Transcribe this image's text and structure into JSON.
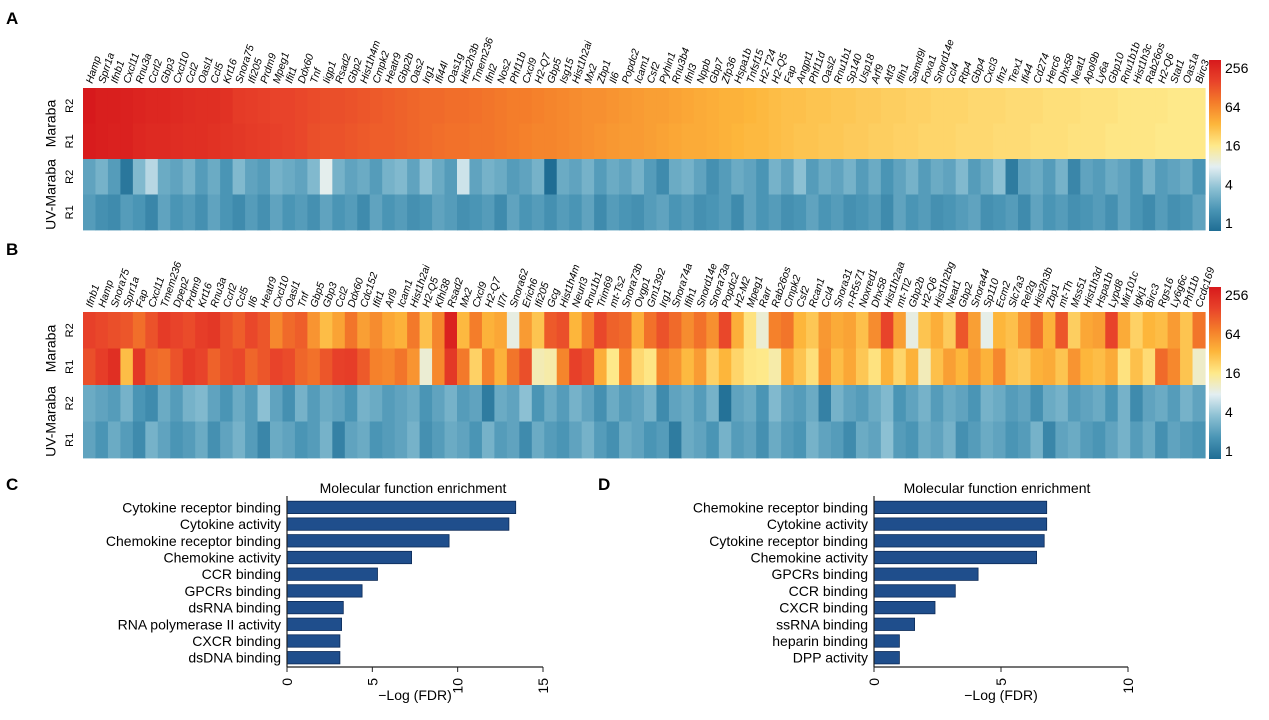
{
  "panels": {
    "A": {
      "label": "A"
    },
    "B": {
      "label": "B"
    },
    "C": {
      "label": "C"
    },
    "D": {
      "label": "D"
    }
  },
  "colorbar": {
    "ticks": [
      "256",
      "64",
      "16",
      "4",
      "1"
    ],
    "colors": [
      "#d7191c",
      "#e8432a",
      "#f47d2a",
      "#fdb63b",
      "#fee98a",
      "#e3eef2",
      "#8cc0d3",
      "#4a95b5",
      "#1f6d94"
    ]
  },
  "chart_data": [
    {
      "type": "heatmap",
      "panel": "A",
      "row_group_labels": [
        "Maraba",
        "UV-Maraba"
      ],
      "row_labels": [
        "R2",
        "R1",
        "R2",
        "R1"
      ],
      "scale": "log2 fold change, 1 to 256",
      "genes": [
        "Hamp",
        "Sprr1a",
        "Ifnb1",
        "Cxcl11",
        "Rnu3a",
        "Ccrl2",
        "Gbp3",
        "Cxcl10",
        "Ccl2",
        "Oasl1",
        "Ccl5",
        "Krt16",
        "Snora75",
        "Ifi205",
        "Prdm9",
        "Mpeg1",
        "Ifit1",
        "Ddx60",
        "Tnf",
        "Iigp1",
        "Rsad2",
        "Gbp2",
        "Hist1h4m",
        "Cmpk2",
        "Heatr9",
        "Gbp2b",
        "Oas2",
        "Irg1",
        "Ifi44l",
        "Oas1g",
        "Hist2h3b",
        "Tmem236",
        "Ifnl2",
        "Nos2",
        "Phf11b",
        "Cxcl9",
        "H2-Q7",
        "Gbp5",
        "Isg15",
        "Hist1h2ai",
        "Mx2",
        "Zbp1",
        "Il6",
        "Popdc2",
        "Icam1",
        "Csf2",
        "Pyhin1",
        "Rnu3b4",
        "Ifnl3",
        "Nppb",
        "Gbp7",
        "Zfp36",
        "Hspa1b",
        "Tnfsf15",
        "H2-T24",
        "H2-Q5",
        "Fap",
        "Angpt1",
        "Phf11d",
        "Oasl2",
        "Rnu1b1",
        "Sp140",
        "Usp18",
        "Arf9",
        "Atf3",
        "Ifih1",
        "Samd9l",
        "Foxa1",
        "Snord14e",
        "Ccl4",
        "Rtp4",
        "Gbp4",
        "Cxcl3",
        "Ifnz",
        "Trex1",
        "Ifi44",
        "Cd274",
        "Herc6",
        "Dhx58",
        "Neat1",
        "Apol9b",
        "Ly6a",
        "Gbp10",
        "Rnu1b1b",
        "Hist1h3c",
        "Rab26os",
        "H2-Q6",
        "Stat1",
        "Oas1a",
        "Birc3"
      ],
      "maraba_r2": [
        8,
        7.8,
        7.8,
        7.7,
        7.6,
        7.5,
        7.5,
        7.4,
        7.3,
        7.2,
        7.2,
        7.1,
        6.8,
        6.7,
        6.6,
        6.5,
        6.5,
        6.4,
        6.3,
        6.2,
        6.2,
        6.1,
        6,
        5.9,
        5.8,
        5.7,
        5.6,
        5.5,
        5.5,
        5.4,
        5.4,
        5.3,
        5.2,
        5.1,
        5,
        5,
        4.9,
        4.8,
        4.7,
        4.6,
        4.5,
        4.5,
        4.4,
        4.3,
        4.2,
        4.1,
        4.1,
        4,
        3.9,
        3.8,
        3.7,
        3.6,
        3.6,
        3.5,
        3.4,
        3.3,
        3.2,
        3.2,
        3.1,
        3.1,
        3,
        3,
        2.9,
        2.9,
        2.8,
        2.8,
        2.7,
        2.7,
        2.6,
        2.6,
        2.6,
        2.5,
        2.5,
        2.5,
        2.4,
        2.4,
        2.4,
        2.3,
        2.3,
        2.3,
        2.2,
        2.2,
        2.2,
        2.1,
        2.1,
        2.1,
        2.1,
        2,
        2,
        2
      ],
      "maraba_r1": [
        7.9,
        7.8,
        7.7,
        7.7,
        7.5,
        7.4,
        7.4,
        7.3,
        7.2,
        7.2,
        7.1,
        7,
        6.9,
        6.8,
        6.7,
        6.6,
        6.5,
        6.4,
        6.2,
        6.1,
        6.1,
        6,
        5.9,
        5.8,
        5.8,
        5.7,
        5.6,
        5.5,
        5.4,
        5.3,
        5.3,
        5.2,
        5.2,
        5.1,
        5,
        4.9,
        4.8,
        4.8,
        4.7,
        4.6,
        4.5,
        4.4,
        4.3,
        4.2,
        4.2,
        4.1,
        4,
        3.9,
        3.8,
        3.8,
        3.7,
        3.6,
        3.5,
        3.4,
        3.4,
        3.3,
        3.2,
        3.1,
        3.1,
        3,
        3,
        2.9,
        2.9,
        2.8,
        2.8,
        2.7,
        2.7,
        2.6,
        2.6,
        2.6,
        2.5,
        2.5,
        2.5,
        2.4,
        2.4,
        2.4,
        2.3,
        2.3,
        2.3,
        2.2,
        2.2,
        2.2,
        2.1,
        2.1,
        2.1,
        2.1,
        2,
        2,
        2,
        2
      ],
      "uv_r2": [
        -0.8,
        -0.6,
        -0.9,
        -1.6,
        -0.5,
        -0.2,
        -0.7,
        -0.8,
        -0.6,
        -0.9,
        -0.7,
        -1,
        -0.5,
        -0.8,
        -0.9,
        -0.6,
        -0.7,
        -0.8,
        -0.5,
        0.1,
        -0.6,
        -0.8,
        -0.7,
        -0.9,
        -0.6,
        -0.5,
        -0.8,
        -0.4,
        -0.7,
        -0.9,
        -0.1,
        -0.8,
        -0.6,
        -0.7,
        -0.9,
        -0.8,
        -0.6,
        -1.8,
        -0.7,
        -0.8,
        -0.6,
        -0.9,
        -0.7,
        -0.8,
        -0.6,
        -0.9,
        -1.2,
        -0.7,
        -0.6,
        -0.8,
        -1.1,
        -0.9,
        -0.7,
        -0.8,
        -1,
        -0.6,
        -0.8,
        -0.4,
        -0.9,
        -0.7,
        -0.8,
        -0.6,
        -0.9,
        -0.7,
        -1,
        -0.8,
        -0.6,
        -0.9,
        -0.7,
        -0.8,
        -0.5,
        -0.9,
        -0.7,
        -0.4,
        -1.5,
        -0.8,
        -0.7,
        -0.9,
        -0.6,
        -1.3,
        -0.8,
        -0.9,
        -0.7,
        -0.8,
        -1,
        -0.6,
        -0.9,
        -0.8,
        -0.7,
        -1
      ],
      "uv_r1": [
        -0.9,
        -1.1,
        -1.2,
        -0.9,
        -1,
        -1.3,
        -0.8,
        -1,
        -0.9,
        -1.1,
        -0.8,
        -1,
        -1.2,
        -0.9,
        -1.1,
        -0.8,
        -1,
        -0.9,
        -1.1,
        -0.8,
        -1,
        -0.9,
        -1.2,
        -0.8,
        -1,
        -0.9,
        -1.1,
        -1,
        -0.8,
        -0.9,
        -1.1,
        -1,
        -0.9,
        -1.2,
        -0.8,
        -1,
        -0.9,
        -1.1,
        -0.9,
        -1,
        -0.8,
        -1.2,
        -0.9,
        -1,
        -1.1,
        -0.9,
        -0.8,
        -1,
        -0.9,
        -1.1,
        -1,
        -0.9,
        -1.2,
        -0.8,
        -1,
        -0.9,
        -1.1,
        -1,
        -0.8,
        -1,
        -0.9,
        -1.1,
        -1,
        -0.9,
        -1.2,
        -0.8,
        -1,
        -0.9,
        -1.1,
        -1,
        -0.9,
        -0.8,
        -1.1,
        -1,
        -0.9,
        -1.2,
        -0.8,
        -1,
        -0.9,
        -1.1,
        -1,
        -0.9,
        -1.1,
        -0.8,
        -1,
        -1.2,
        -0.9,
        -1.1,
        -1,
        -0.8
      ]
    },
    {
      "type": "heatmap",
      "panel": "B",
      "row_group_labels": [
        "Maraba",
        "UV-Maraba"
      ],
      "row_labels": [
        "R2",
        "R1",
        "R2",
        "R1"
      ],
      "scale": "log2 fold change, 1 to 256",
      "genes": [
        "Ifnb1",
        "Hamp",
        "Snora75",
        "Sprr1a",
        "Fap",
        "Cxcl11",
        "Tmem236",
        "Dpep2",
        "Prdm9",
        "Krt16",
        "Rnu3a",
        "Ccrl2",
        "Ccl5",
        "Il6",
        "Heatr9",
        "Cxcl10",
        "Oasl1",
        "Tnf",
        "Gbp5",
        "Gbp3",
        "Ccl2",
        "Ddx60",
        "Cdc152",
        "Ifit1",
        "Arl9",
        "Icam1",
        "Hist1h2ai",
        "H2-Q5",
        "Klhl38",
        "Rsad2",
        "Mx2",
        "Cxcl9",
        "H2-Q7",
        "Il7r",
        "Snora62",
        "Erich6",
        "Ifi205",
        "Gcg",
        "Hist1h4m",
        "Neurl3",
        "Rnu1b1",
        "Trim69",
        "mt-Ts2",
        "Snora73b",
        "Ovgp1",
        "Gm1392",
        "Irg1",
        "Snora74a",
        "Ifih1",
        "Snord14e",
        "Snora73a",
        "Popdc2",
        "H2-M2",
        "Mpeg1",
        "Rarr",
        "Rab26os",
        "Cmpk2",
        "Csf2",
        "Rcan1",
        "Ccl4",
        "Snora31",
        "n-R5s71",
        "Noxred1",
        "Dhx58",
        "Hist1h2aa",
        "mt-Tl2",
        "Gbp2b",
        "H2-Q6",
        "Hist1h2bg",
        "Neat1",
        "Gbp2",
        "Snora44",
        "Sp110",
        "Ecm2",
        "Slc7a3",
        "Rel2g",
        "Hist2h3b",
        "Zbp1",
        "mt-Th",
        "Mss51",
        "Hist1h3d",
        "Hspa1b",
        "Lypd8",
        "Mir101c",
        "Igkj1",
        "Birc3",
        "Rgs16",
        "Ly6g6c",
        "Phf11b",
        "Ccdc169"
      ],
      "maraba_r2": [
        6.6,
        6.4,
        6.2,
        6,
        5.4,
        6.1,
        6.8,
        6.5,
        6.3,
        6.7,
        6.9,
        6.2,
        5.8,
        6.4,
        6,
        4.7,
        5.5,
        5.8,
        4.4,
        3.3,
        4,
        5.2,
        4.1,
        4.6,
        3.9,
        3.6,
        5.1,
        3.2,
        4.8,
        7.7,
        3.4,
        5,
        3.6,
        3.9,
        0.3,
        4.2,
        3.1,
        5.9,
        6.2,
        3.5,
        5,
        6.4,
        5.7,
        5.5,
        3.7,
        5.3,
        6.1,
        5.5,
        4.6,
        5.3,
        4.5,
        6.4,
        3.7,
        2.2,
        0.6,
        4.9,
        5.2,
        3.5,
        3,
        4.3,
        3.8,
        4,
        3.2,
        4.6,
        6.5,
        4.1,
        0.3,
        3.1,
        3.7,
        2.9,
        6,
        4.1,
        0.2,
        3.5,
        3.2,
        4.4,
        5.4,
        3.6,
        6,
        2.8,
        3.9,
        4.1,
        6.5,
        3.8,
        2.7,
        3.5,
        3.3,
        4.2,
        3.1,
        5.2
      ],
      "maraba_r1": [
        6.2,
        6.7,
        7.2,
        3.3,
        6.9,
        5.6,
        5.4,
        6.1,
        6.8,
        6.5,
        5.7,
        6.2,
        6.4,
        5.6,
        6,
        6.5,
        6.3,
        5.6,
        5.3,
        6,
        6.6,
        6.7,
        5.9,
        4.9,
        4.7,
        5.2,
        4.4,
        0.6,
        4.7,
        6.9,
        5.1,
        2.7,
        4.9,
        3.6,
        5.2,
        6.2,
        1.2,
        1.4,
        4.8,
        6.6,
        6.2,
        3.7,
        2,
        4.9,
        2.5,
        2.1,
        4.8,
        4.4,
        3.4,
        4.2,
        2.7,
        3.5,
        2.6,
        2.1,
        2,
        1.4,
        3.9,
        3.1,
        2.3,
        4.4,
        3.3,
        3.9,
        3,
        2.2,
        3.6,
        2.6,
        3.6,
        1.1,
        3.2,
        4.1,
        3.5,
        4.3,
        3.6,
        4.7,
        3.1,
        2.9,
        3.6,
        3.8,
        3.1,
        4.4,
        3.5,
        3.3,
        3.8,
        2.2,
        3.2,
        2.4,
        5.5,
        4.7,
        3.1,
        0.8
      ],
      "uv_r2": [
        -0.7,
        -0.8,
        -0.9,
        -0.6,
        -1,
        -1.2,
        -0.7,
        -0.9,
        -0.6,
        -0.5,
        -0.8,
        -1,
        -0.7,
        -0.9,
        -0.4,
        -0.8,
        -1.1,
        -0.6,
        -0.9,
        -0.7,
        -0.8,
        -1,
        -0.6,
        -0.7,
        -0.9,
        -0.8,
        -0.7,
        -1,
        -0.8,
        -0.6,
        -0.9,
        -0.8,
        -1.5,
        -0.7,
        -0.8,
        -0.4,
        -1,
        -0.7,
        -0.9,
        -0.6,
        -0.8,
        -1.1,
        -0.7,
        -0.9,
        -0.8,
        -0.6,
        -1.2,
        -0.8,
        -0.7,
        -0.9,
        -0.6,
        -1.7,
        -0.8,
        -0.7,
        -1,
        -0.5,
        -0.8,
        -0.9,
        -0.7,
        -1.4,
        -0.6,
        -0.8,
        -0.9,
        -0.7,
        -0.5,
        -1,
        -0.8,
        -0.6,
        -0.9,
        -0.7,
        -0.8,
        -1,
        -0.6,
        -0.7,
        -0.9,
        -0.8,
        -1.1,
        -0.7,
        -0.6,
        -0.9,
        -0.8,
        -0.7,
        -1,
        -0.6,
        -1.2,
        -0.8,
        -0.7,
        -0.9,
        -0.6,
        -0.8
      ],
      "uv_r1": [
        -0.8,
        -1,
        -0.7,
        -0.9,
        -1.2,
        -0.6,
        -0.8,
        -1,
        -0.9,
        -0.7,
        -1.1,
        -0.8,
        -0.6,
        -0.9,
        -1.3,
        -0.7,
        -0.8,
        -1,
        -0.9,
        -0.6,
        -1.4,
        -0.8,
        -0.7,
        -1,
        -0.9,
        -0.8,
        -0.6,
        -1.1,
        -0.9,
        -0.7,
        -0.8,
        -1,
        -0.6,
        -0.9,
        -0.8,
        -1.2,
        -0.7,
        -0.9,
        -1,
        -0.8,
        -0.6,
        -0.9,
        -1.1,
        -0.7,
        -0.8,
        -1,
        -0.9,
        -1.5,
        -0.7,
        -0.8,
        -1,
        -0.6,
        -0.9,
        -0.8,
        -1.1,
        -0.7,
        -0.9,
        -1,
        -0.6,
        -0.8,
        -0.9,
        -1.2,
        -0.7,
        -0.8,
        -0.4,
        -0.9,
        -1,
        -0.7,
        -0.8,
        -0.6,
        -1.1,
        -0.9,
        -0.7,
        -0.8,
        -1,
        -0.9,
        -0.6,
        -1.3,
        -0.8,
        -0.7,
        -0.9,
        -1,
        -0.8,
        -0.6,
        -0.9,
        -0.7,
        -1.1,
        -0.8,
        -0.9,
        -1
      ]
    },
    {
      "type": "bar",
      "orientation": "horizontal",
      "panel": "C",
      "title": "Molecular function enrichment",
      "xlabel": "−Log (FDR)",
      "xlim": [
        0,
        15
      ],
      "xticks": [
        0,
        5,
        10,
        15
      ],
      "categories": [
        "Cytokine receptor binding",
        "Cytokine activity",
        "Chemokine receptor binding",
        "Chemokine activity",
        "CCR binding",
        "GPCRs binding",
        "dsRNA binding",
        "RNA polymerase II activity",
        "CXCR binding",
        "dsDNA binding"
      ],
      "values": [
        13.4,
        13.0,
        9.5,
        7.3,
        5.3,
        4.4,
        3.3,
        3.2,
        3.1,
        3.1
      ],
      "color": "#1f4e8c"
    },
    {
      "type": "bar",
      "orientation": "horizontal",
      "panel": "D",
      "title": "Molecular function enrichment",
      "xlabel": "−Log (FDR)",
      "xlim": [
        0,
        10
      ],
      "xticks": [
        0,
        5,
        10
      ],
      "categories": [
        "Chemokine receptor binding",
        "Cytokine activity",
        "Cytokine receptor binding",
        "Chemokine activity",
        "GPCRs binding",
        "CCR binding",
        "CXCR binding",
        "ssRNA binding",
        "heparin binding",
        "DPP activity"
      ],
      "values": [
        6.8,
        6.8,
        6.7,
        6.4,
        4.1,
        3.2,
        2.4,
        1.6,
        1.0,
        1.0
      ],
      "color": "#1f4e8c"
    }
  ]
}
